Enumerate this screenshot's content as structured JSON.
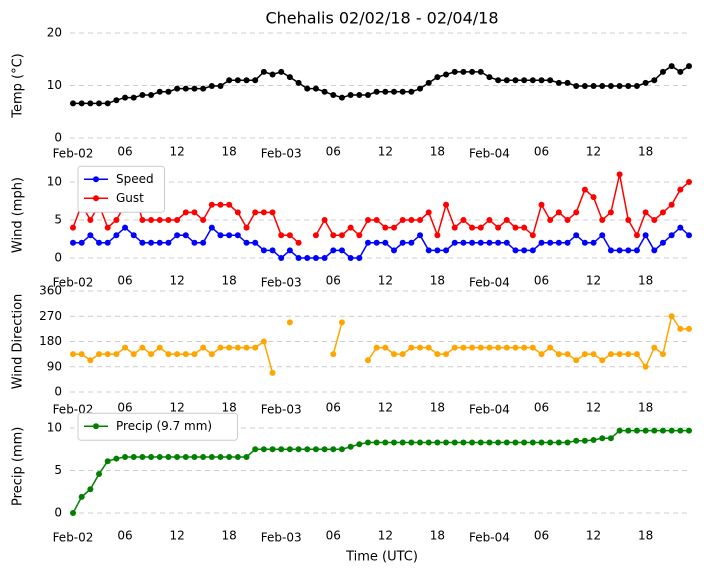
{
  "chart_data": [
    {
      "type": "line",
      "title": "Chehalis 02/02/18 - 02/04/18",
      "ylabel": "Temp (°C)",
      "color": "#000000",
      "x": [
        0,
        1,
        2,
        3,
        4,
        5,
        6,
        7,
        8,
        9,
        10,
        11,
        12,
        13,
        14,
        15,
        16,
        17,
        18,
        19,
        20,
        21,
        22,
        23,
        24,
        25,
        26,
        27,
        28,
        29,
        30,
        31,
        32,
        33,
        34,
        35,
        36,
        37,
        38,
        39,
        40,
        41,
        42,
        43,
        44,
        45,
        46,
        47,
        48,
        49,
        50,
        51,
        52,
        53,
        54,
        55,
        56,
        57,
        58,
        59,
        60,
        61,
        62,
        63,
        64,
        65,
        66,
        67,
        68,
        69,
        70,
        71
      ],
      "values": [
        6.6,
        6.6,
        6.6,
        6.6,
        6.6,
        7.2,
        7.7,
        7.7,
        8.2,
        8.2,
        8.8,
        8.8,
        9.4,
        9.4,
        9.4,
        9.4,
        9.9,
        9.9,
        11,
        11,
        11,
        11,
        12.6,
        12.1,
        12.6,
        11.6,
        10.5,
        9.4,
        9.4,
        8.8,
        8.2,
        7.7,
        8.2,
        8.2,
        8.2,
        8.8,
        8.8,
        8.8,
        8.8,
        8.8,
        9.4,
        10.5,
        11.6,
        12.1,
        12.6,
        12.6,
        12.6,
        12.6,
        11.6,
        11,
        11,
        11,
        11,
        11,
        11,
        11,
        10.5,
        10.5,
        9.9,
        9.9,
        9.9,
        9.9,
        9.9,
        9.9,
        9.9,
        9.9,
        10.5,
        11,
        12.6,
        13.7,
        12.6,
        13.7
      ],
      "xlim": [
        0,
        71
      ],
      "ylim": [
        0,
        20
      ],
      "yticks": [
        0,
        10,
        20
      ],
      "grid": true,
      "xticks": [
        {
          "value": 0,
          "label": "Feb-02"
        },
        {
          "value": 6,
          "label": "06"
        },
        {
          "value": 12,
          "label": "12"
        },
        {
          "value": 18,
          "label": "18"
        },
        {
          "value": 24,
          "label": "Feb-03"
        },
        {
          "value": 30,
          "label": "06"
        },
        {
          "value": 36,
          "label": "12"
        },
        {
          "value": 42,
          "label": "18"
        },
        {
          "value": 48,
          "label": "Feb-04"
        },
        {
          "value": 54,
          "label": "06"
        },
        {
          "value": 60,
          "label": "12"
        },
        {
          "value": 66,
          "label": "18"
        }
      ]
    },
    {
      "type": "line",
      "ylabel": "Wind (mph)",
      "legend": "upper left",
      "x": [
        0,
        1,
        2,
        3,
        4,
        5,
        6,
        7,
        8,
        9,
        10,
        11,
        12,
        13,
        14,
        15,
        16,
        17,
        18,
        19,
        20,
        21,
        22,
        23,
        24,
        25,
        26,
        27,
        28,
        29,
        30,
        31,
        32,
        33,
        34,
        35,
        36,
        37,
        38,
        39,
        40,
        41,
        42,
        43,
        44,
        45,
        46,
        47,
        48,
        49,
        50,
        51,
        52,
        53,
        54,
        55,
        56,
        57,
        58,
        59,
        60,
        61,
        62,
        63,
        64,
        65,
        66,
        67,
        68,
        69,
        70,
        71
      ],
      "series": [
        {
          "name": "Speed",
          "color": "#0000ff",
          "values": [
            2,
            2,
            3,
            2,
            2,
            3,
            4,
            3,
            2,
            2,
            2,
            2,
            3,
            3,
            2,
            2,
            4,
            3,
            3,
            3,
            2,
            2,
            1,
            1,
            0,
            1,
            0,
            0,
            0,
            0,
            1,
            1,
            0,
            0,
            2,
            2,
            2,
            1,
            2,
            2,
            3,
            1,
            1,
            1,
            2,
            2,
            2,
            2,
            2,
            2,
            2,
            1,
            1,
            1,
            2,
            2,
            2,
            2,
            3,
            2,
            2,
            3,
            1,
            1,
            1,
            1,
            3,
            1,
            2,
            3,
            4,
            3
          ]
        },
        {
          "name": "Gust",
          "color": "#ff0000",
          "values": [
            4,
            7,
            5,
            7,
            4,
            5,
            7,
            9,
            5,
            5,
            5,
            5,
            5,
            6,
            6,
            5,
            7,
            7,
            7,
            6,
            4,
            6,
            6,
            6,
            3,
            3,
            2,
            null,
            3,
            5,
            3,
            3,
            4,
            3,
            5,
            5,
            4,
            4,
            5,
            5,
            5,
            6,
            3,
            7,
            4,
            5,
            4,
            4,
            5,
            4,
            5,
            4,
            4,
            3,
            7,
            5,
            6,
            5,
            6,
            9,
            8,
            5,
            6,
            11,
            5,
            3,
            6,
            5,
            6,
            7,
            9,
            10
          ]
        }
      ],
      "xlim": [
        0,
        71
      ],
      "ylim": [
        -0.5,
        11.8
      ],
      "yticks": [
        0,
        5,
        10
      ],
      "grid": true,
      "xticks": [
        {
          "value": 0,
          "label": "Feb-02"
        },
        {
          "value": 6,
          "label": "06"
        },
        {
          "value": 12,
          "label": "12"
        },
        {
          "value": 18,
          "label": "18"
        },
        {
          "value": 24,
          "label": "Feb-03"
        },
        {
          "value": 30,
          "label": "06"
        },
        {
          "value": 36,
          "label": "12"
        },
        {
          "value": 42,
          "label": "18"
        },
        {
          "value": 48,
          "label": "Feb-04"
        },
        {
          "value": 54,
          "label": "06"
        },
        {
          "value": 60,
          "label": "12"
        },
        {
          "value": 66,
          "label": "18"
        }
      ]
    },
    {
      "type": "line",
      "ylabel": "Wind Direction",
      "color": "#ffa500",
      "x": [
        0,
        1,
        2,
        3,
        4,
        5,
        6,
        7,
        8,
        9,
        10,
        11,
        12,
        13,
        14,
        15,
        16,
        17,
        18,
        19,
        20,
        21,
        22,
        23,
        24,
        25,
        26,
        27,
        28,
        29,
        30,
        31,
        32,
        33,
        34,
        35,
        36,
        37,
        38,
        39,
        40,
        41,
        42,
        43,
        44,
        45,
        46,
        47,
        48,
        49,
        50,
        51,
        52,
        53,
        54,
        55,
        56,
        57,
        58,
        59,
        60,
        61,
        62,
        63,
        64,
        65,
        66,
        67,
        68,
        69,
        70,
        71
      ],
      "values": [
        135,
        135,
        113,
        135,
        135,
        135,
        158,
        135,
        158,
        135,
        158,
        135,
        135,
        135,
        135,
        158,
        135,
        158,
        158,
        158,
        158,
        158,
        180,
        68,
        null,
        248,
        null,
        null,
        null,
        null,
        135,
        248,
        null,
        null,
        113,
        158,
        158,
        135,
        135,
        158,
        158,
        158,
        135,
        135,
        158,
        158,
        158,
        158,
        158,
        158,
        158,
        158,
        158,
        158,
        135,
        158,
        135,
        135,
        113,
        135,
        135,
        113,
        135,
        135,
        135,
        135,
        90,
        158,
        135,
        270,
        225,
        225
      ],
      "xlim": [
        0,
        71
      ],
      "ylim": [
        0,
        360
      ],
      "yticks": [
        0,
        90,
        180,
        270,
        360
      ],
      "grid": true,
      "xticks": [
        {
          "value": 0,
          "label": "Feb-02"
        },
        {
          "value": 6,
          "label": "06"
        },
        {
          "value": 12,
          "label": "12"
        },
        {
          "value": 18,
          "label": "18"
        },
        {
          "value": 24,
          "label": "Feb-03"
        },
        {
          "value": 30,
          "label": "06"
        },
        {
          "value": 36,
          "label": "12"
        },
        {
          "value": 42,
          "label": "18"
        },
        {
          "value": 48,
          "label": "Feb-04"
        },
        {
          "value": 54,
          "label": "06"
        },
        {
          "value": 60,
          "label": "12"
        },
        {
          "value": 66,
          "label": "18"
        }
      ]
    },
    {
      "type": "line",
      "ylabel": "Precip (mm)",
      "xlabel": "Time (UTC)",
      "legend": "upper left",
      "x": [
        0,
        1,
        2,
        3,
        4,
        5,
        6,
        7,
        8,
        9,
        10,
        11,
        12,
        13,
        14,
        15,
        16,
        17,
        18,
        19,
        20,
        21,
        22,
        23,
        24,
        25,
        26,
        27,
        28,
        29,
        30,
        31,
        32,
        33,
        34,
        35,
        36,
        37,
        38,
        39,
        40,
        41,
        42,
        43,
        44,
        45,
        46,
        47,
        48,
        49,
        50,
        51,
        52,
        53,
        54,
        55,
        56,
        57,
        58,
        59,
        60,
        61,
        62,
        63,
        64,
        65,
        66,
        67,
        68,
        69,
        70,
        71
      ],
      "series": [
        {
          "name": "Precip (9.7 mm)",
          "color": "#008000",
          "values": [
            0,
            1.9,
            2.8,
            4.6,
            6.1,
            6.4,
            6.6,
            6.6,
            6.6,
            6.6,
            6.6,
            6.6,
            6.6,
            6.6,
            6.6,
            6.6,
            6.6,
            6.6,
            6.6,
            6.6,
            6.6,
            7.5,
            7.5,
            7.5,
            7.5,
            7.5,
            7.5,
            7.5,
            7.5,
            7.5,
            7.5,
            7.5,
            7.8,
            8.1,
            8.3,
            8.3,
            8.3,
            8.3,
            8.3,
            8.3,
            8.3,
            8.3,
            8.3,
            8.3,
            8.3,
            8.3,
            8.3,
            8.3,
            8.3,
            8.3,
            8.3,
            8.3,
            8.3,
            8.3,
            8.3,
            8.3,
            8.3,
            8.3,
            8.5,
            8.5,
            8.6,
            8.8,
            8.8,
            9.7,
            9.7,
            9.7,
            9.7,
            9.7,
            9.7,
            9.7,
            9.7,
            9.7
          ]
        }
      ],
      "xlim": [
        0,
        71
      ],
      "ylim": [
        -0.5,
        11.5
      ],
      "yticks": [
        0,
        5,
        10
      ],
      "grid": true,
      "xticks": [
        {
          "value": 0,
          "label": "Feb-02"
        },
        {
          "value": 6,
          "label": "06"
        },
        {
          "value": 12,
          "label": "12"
        },
        {
          "value": 18,
          "label": "18"
        },
        {
          "value": 24,
          "label": "Feb-03"
        },
        {
          "value": 30,
          "label": "06"
        },
        {
          "value": 36,
          "label": "12"
        },
        {
          "value": 42,
          "label": "18"
        },
        {
          "value": 48,
          "label": "Feb-04"
        },
        {
          "value": 54,
          "label": "06"
        },
        {
          "value": 60,
          "label": "12"
        },
        {
          "value": 66,
          "label": "18"
        }
      ]
    }
  ]
}
